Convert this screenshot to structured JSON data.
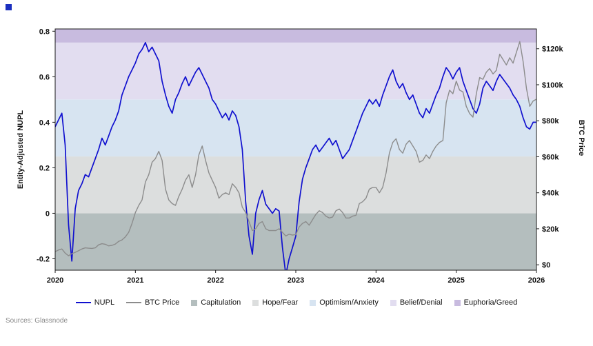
{
  "chart_data": {
    "type": "line",
    "title": "",
    "source": "Sources: Glassnode",
    "x_axis": {
      "ticks": [
        2020,
        2021,
        2022,
        2023,
        2024,
        2025,
        2026
      ],
      "tick_labels": [
        "2020",
        "2021",
        "2022",
        "2023",
        "2024",
        "2025",
        "2026"
      ],
      "range": [
        2020,
        2026
      ]
    },
    "left_axis": {
      "label": "Entity-Adjusted NUPL",
      "ticks": [
        -0.2,
        0,
        0.2,
        0.4,
        0.6,
        0.8
      ],
      "tick_labels": [
        "-0.2",
        "0",
        "0.2",
        "0.4",
        "0.6",
        "0.8"
      ],
      "range": [
        -0.25,
        0.81
      ]
    },
    "right_axis": {
      "label": "BTC Price",
      "ticks": [
        0,
        20,
        40,
        60,
        80,
        100,
        120
      ],
      "tick_labels": [
        "$0",
        "$20k",
        "$40k",
        "$60k",
        "$80k",
        "$100k",
        "$120k"
      ],
      "range": [
        -3,
        131
      ]
    },
    "x_start": 2020,
    "x_step": 0.0416667,
    "bands": [
      {
        "name": "Capitulation",
        "from": -0.25,
        "to": 0,
        "color": "#b4bebe"
      },
      {
        "name": "Hope/Fear",
        "from": 0,
        "to": 0.25,
        "color": "#dcdede"
      },
      {
        "name": "Optimism/Anxiety",
        "from": 0.25,
        "to": 0.5,
        "color": "#d7e4f1"
      },
      {
        "name": "Belief/Denial",
        "from": 0.5,
        "to": 0.75,
        "color": "#e2ddf0"
      },
      {
        "name": "Euphoria/Greed",
        "from": 0.75,
        "to": 0.81,
        "color": "#c8bbdf"
      }
    ],
    "series": [
      {
        "name": "NUPL",
        "axis": "left",
        "color": "#1010cf",
        "width": 1.7,
        "values": [
          0.38,
          0.41,
          0.44,
          0.3,
          -0.05,
          -0.21,
          0.02,
          0.1,
          0.13,
          0.17,
          0.16,
          0.2,
          0.24,
          0.28,
          0.33,
          0.3,
          0.34,
          0.38,
          0.41,
          0.45,
          0.52,
          0.56,
          0.6,
          0.63,
          0.66,
          0.7,
          0.72,
          0.75,
          0.71,
          0.73,
          0.7,
          0.67,
          0.58,
          0.52,
          0.47,
          0.44,
          0.5,
          0.53,
          0.57,
          0.6,
          0.56,
          0.59,
          0.62,
          0.64,
          0.61,
          0.58,
          0.55,
          0.5,
          0.48,
          0.45,
          0.42,
          0.44,
          0.41,
          0.45,
          0.43,
          0.38,
          0.28,
          0.05,
          -0.1,
          -0.18,
          0.0,
          0.06,
          0.1,
          0.04,
          0.02,
          0.0,
          0.02,
          0.01,
          -0.15,
          -0.27,
          -0.2,
          -0.15,
          -0.1,
          0.05,
          0.15,
          0.2,
          0.24,
          0.28,
          0.3,
          0.27,
          0.29,
          0.31,
          0.33,
          0.3,
          0.32,
          0.28,
          0.24,
          0.26,
          0.28,
          0.32,
          0.36,
          0.4,
          0.44,
          0.47,
          0.5,
          0.48,
          0.5,
          0.47,
          0.52,
          0.56,
          0.6,
          0.63,
          0.58,
          0.55,
          0.57,
          0.53,
          0.5,
          0.52,
          0.48,
          0.44,
          0.42,
          0.46,
          0.44,
          0.48,
          0.52,
          0.55,
          0.6,
          0.64,
          0.62,
          0.59,
          0.62,
          0.64,
          0.58,
          0.54,
          0.5,
          0.46,
          0.44,
          0.48,
          0.55,
          0.58,
          0.56,
          0.54,
          0.58,
          0.61,
          0.59,
          0.57,
          0.55,
          0.52,
          0.5,
          0.47,
          0.42,
          0.38,
          0.37,
          0.4,
          0.4
        ]
      },
      {
        "name": "BTC Price",
        "axis": "right",
        "color": "#8c8c8c",
        "width": 1.4,
        "unit": "USD thousands",
        "values": [
          7.3,
          8.2,
          8.8,
          6.5,
          5.0,
          6.2,
          6.9,
          7.8,
          8.8,
          9.4,
          9.2,
          9.1,
          9.4,
          11.1,
          11.7,
          11.4,
          10.5,
          10.8,
          11.5,
          13.0,
          13.8,
          15.5,
          18.0,
          23.0,
          29,
          33,
          36,
          46,
          50,
          57,
          59,
          63,
          58,
          42,
          36,
          34,
          33,
          38,
          42,
          47,
          50,
          43,
          50,
          61,
          66,
          58,
          51,
          47,
          43,
          37,
          39,
          40,
          39,
          45,
          43,
          40,
          32,
          29,
          24,
          19,
          20,
          23,
          24,
          20,
          19,
          19,
          19,
          20,
          18,
          16,
          17,
          16.5,
          16.8,
          21,
          23,
          24,
          22,
          25,
          28,
          30,
          29,
          27,
          26,
          26.5,
          30,
          31,
          29,
          26,
          26,
          27,
          27.5,
          34,
          35,
          37,
          42,
          43,
          43,
          40,
          43,
          51,
          62,
          68,
          70,
          64,
          62,
          67,
          69,
          66,
          63,
          57,
          58,
          61,
          59,
          63,
          66,
          68,
          69,
          90,
          97,
          95,
          102,
          97,
          96,
          88,
          84,
          82,
          95,
          104,
          103,
          107,
          109,
          106,
          108,
          117,
          114,
          111,
          115,
          112,
          118,
          124,
          113,
          98,
          88,
          91,
          92
        ]
      }
    ],
    "legend": [
      {
        "label": "NUPL",
        "type": "line",
        "color": "#1010cf"
      },
      {
        "label": "BTC Price",
        "type": "line",
        "color": "#8c8c8c"
      },
      {
        "label": "Capitulation",
        "type": "swatch",
        "color": "#b4bebe"
      },
      {
        "label": "Hope/Fear",
        "type": "swatch",
        "color": "#dcdede"
      },
      {
        "label": "Optimism/Anxiety",
        "type": "swatch",
        "color": "#d7e4f1"
      },
      {
        "label": "Belief/Denial",
        "type": "swatch",
        "color": "#e2ddf0"
      },
      {
        "label": "Euphoria/Greed",
        "type": "swatch",
        "color": "#c8bbdf"
      }
    ]
  }
}
